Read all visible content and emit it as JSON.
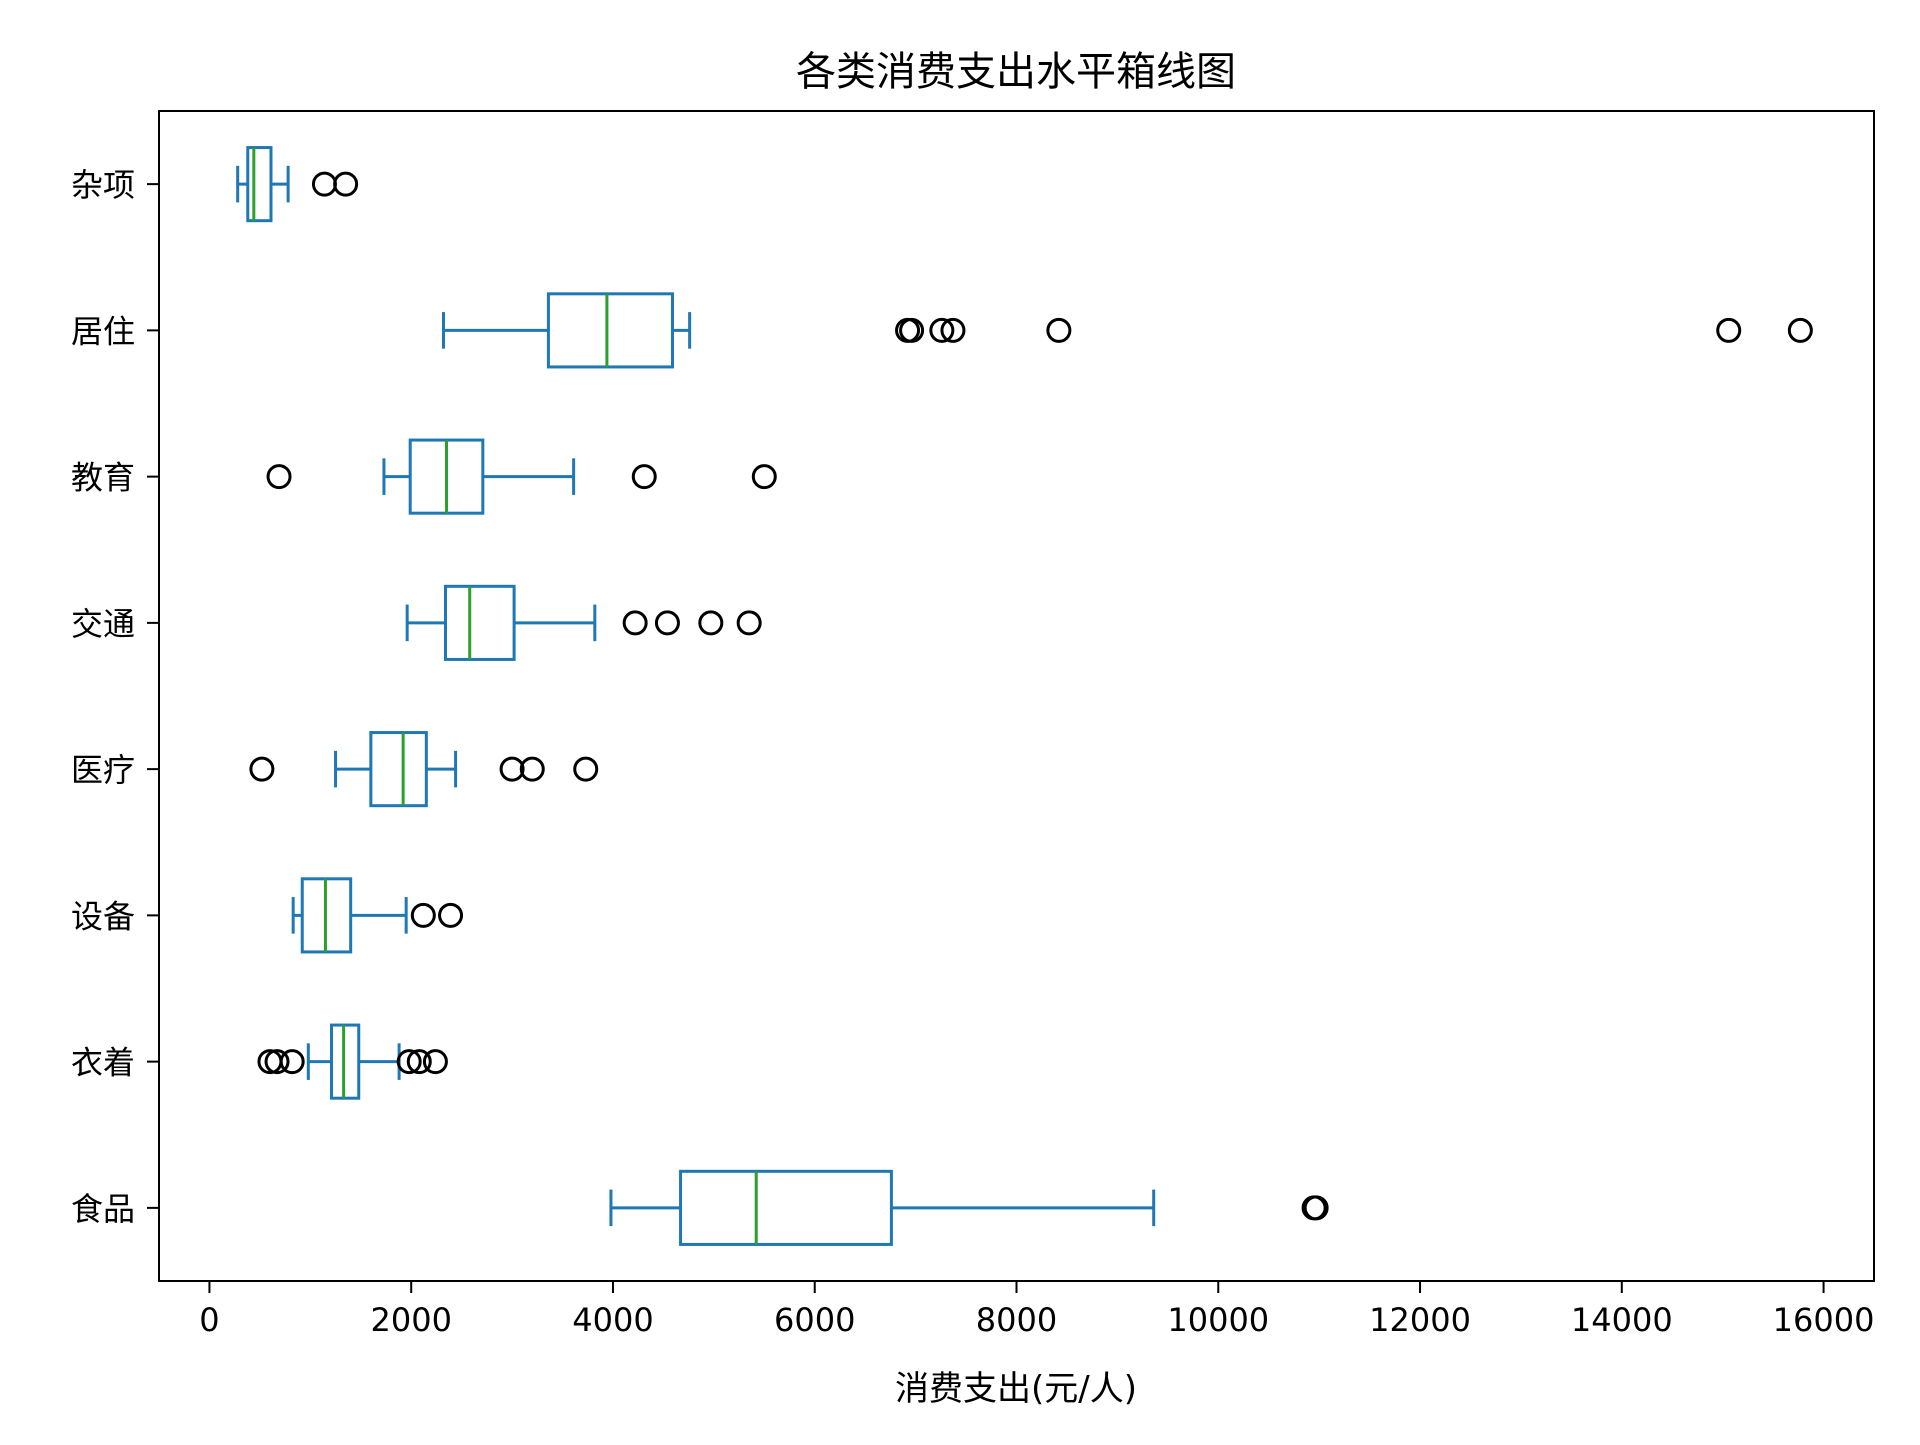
{
  "chart_data": {
    "type": "boxplot",
    "orientation": "horizontal",
    "title": "各类消费支出水平箱线图",
    "xlabel": "消费支出(元/人)",
    "ylabel": "",
    "xlim": [
      -500,
      16500
    ],
    "xticks": [
      0,
      2000,
      4000,
      6000,
      8000,
      10000,
      12000,
      14000,
      16000
    ],
    "xtick_labels": [
      "0",
      "2000",
      "4000",
      "6000",
      "8000",
      "10000",
      "12000",
      "14000",
      "16000"
    ],
    "categories": [
      "食品",
      "衣着",
      "设备",
      "医疗",
      "交通",
      "教育",
      "居住",
      "杂项"
    ],
    "boxes": [
      {
        "category": "食品",
        "whisker_low": 3980,
        "q1": 4670,
        "median": 5420,
        "q3": 6760,
        "whisker_high": 9360,
        "outliers": [
          10950,
          10970
        ]
      },
      {
        "category": "衣着",
        "whisker_low": 980,
        "q1": 1210,
        "median": 1330,
        "q3": 1480,
        "whisker_high": 1880,
        "outliers": [
          600,
          670,
          820,
          1980,
          2080,
          2240
        ]
      },
      {
        "category": "设备",
        "whisker_low": 830,
        "q1": 920,
        "median": 1150,
        "q3": 1400,
        "whisker_high": 1950,
        "outliers": [
          2120,
          2390
        ]
      },
      {
        "category": "医疗",
        "whisker_low": 1250,
        "q1": 1600,
        "median": 1920,
        "q3": 2150,
        "whisker_high": 2440,
        "outliers": [
          520,
          3000,
          3200,
          3730
        ]
      },
      {
        "category": "交通",
        "whisker_low": 1960,
        "q1": 2340,
        "median": 2580,
        "q3": 3020,
        "whisker_high": 3820,
        "outliers": [
          4220,
          4540,
          4970,
          5350
        ]
      },
      {
        "category": "教育",
        "whisker_low": 1730,
        "q1": 1990,
        "median": 2350,
        "q3": 2710,
        "whisker_high": 3610,
        "outliers": [
          690,
          4310,
          5500
        ]
      },
      {
        "category": "居住",
        "whisker_low": 2320,
        "q1": 3360,
        "median": 3940,
        "q3": 4590,
        "whisker_high": 4760,
        "outliers": [
          6920,
          6960,
          7260,
          7370,
          8420,
          15060,
          15770
        ]
      },
      {
        "category": "杂项",
        "whisker_low": 280,
        "q1": 380,
        "median": 440,
        "q3": 610,
        "whisker_high": 780,
        "outliers": [
          1140,
          1350
        ]
      }
    ],
    "grid": false,
    "colors": {
      "box": "#1f77b4",
      "median": "#2ca02c",
      "outlier": "#000000",
      "axes": "#000000"
    }
  }
}
